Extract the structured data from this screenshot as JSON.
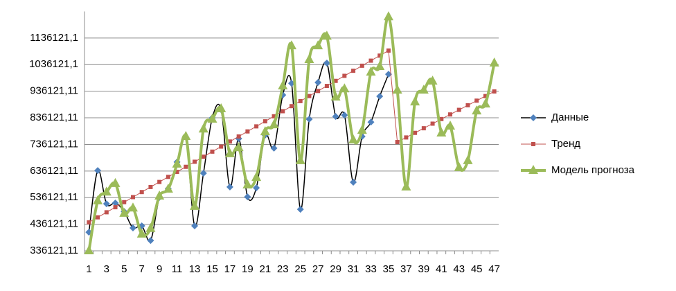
{
  "chart_data": {
    "type": "line",
    "categories": [
      1,
      null,
      3,
      null,
      5,
      null,
      7,
      null,
      9,
      null,
      11,
      null,
      13,
      null,
      15,
      null,
      17,
      null,
      19,
      null,
      21,
      null,
      23,
      null,
      25,
      null,
      27,
      null,
      29,
      null,
      31,
      null,
      33,
      null,
      35,
      null,
      37,
      null,
      39,
      null,
      41,
      null,
      43,
      null,
      45,
      null,
      47
    ],
    "series": [
      {
        "name": "Данные",
        "color": "#4f81bd",
        "marker": "diamond",
        "line_color": "#000000",
        "values": [
          406000,
          638000,
          513000,
          516000,
          484000,
          422000,
          430000,
          375000,
          537000,
          570000,
          670000,
          763000,
          430000,
          628000,
          836000,
          867000,
          576000,
          758000,
          539000,
          573000,
          771000,
          722000,
          922000,
          966000,
          492000,
          831000,
          969000,
          1042000,
          841000,
          846000,
          594000,
          766000,
          820000,
          917000,
          1000000,
          null,
          null,
          null,
          null,
          null,
          null,
          null,
          null,
          null,
          null,
          null,
          null
        ]
      },
      {
        "name": "Тренд",
        "color": "#c0504d",
        "marker": "square",
        "line_color": "#c0504d",
        "values": [
          443000,
          462000,
          481000,
          500000,
          519000,
          538000,
          557000,
          576000,
          595000,
          614000,
          633000,
          652000,
          671000,
          690000,
          709000,
          728000,
          747000,
          766000,
          785000,
          804000,
          823000,
          842000,
          861000,
          880000,
          899000,
          918000,
          937000,
          956000,
          975000,
          994000,
          1013000,
          1032000,
          1051000,
          1070000,
          1089000,
          745000,
          762300,
          779600,
          796900,
          814200,
          831500,
          848800,
          866100,
          883400,
          900700,
          918000,
          935300
        ]
      },
      {
        "name": "Модель прогноза",
        "color": "#9bbb59",
        "marker": "triangle",
        "line_color": "#9bbb59",
        "values": [
          336000,
          524000,
          557000,
          589000,
          477000,
          497000,
          399000,
          420000,
          542000,
          568000,
          662000,
          766000,
          503000,
          794000,
          831000,
          870000,
          701000,
          724000,
          584000,
          612000,
          784000,
          810000,
          956000,
          1107000,
          675000,
          1055000,
          1107000,
          1143000,
          914000,
          945000,
          753000,
          789000,
          1008000,
          1029000,
          1216000,
          940000,
          576000,
          896000,
          940000,
          974000,
          779000,
          805000,
          649000,
          675000,
          862000,
          888000,
          1042000
        ]
      }
    ],
    "ylim": [
      336121.11,
      1236121.11
    ],
    "yticks": [
      {
        "value": 336121.11,
        "label": "336121,11"
      },
      {
        "value": 436121.11,
        "label": "436121,11"
      },
      {
        "value": 536121.11,
        "label": "536121,11"
      },
      {
        "value": 636121.11,
        "label": "636121,11"
      },
      {
        "value": 736121.11,
        "label": "736121,11"
      },
      {
        "value": 836121.11,
        "label": "836121,11"
      },
      {
        "value": 936121.11,
        "label": "936121,11"
      },
      {
        "value": 1036121.11,
        "label": "1036121,1"
      },
      {
        "value": 1136121.11,
        "label": "1136121,1"
      }
    ],
    "grid": true,
    "legend": "right"
  }
}
